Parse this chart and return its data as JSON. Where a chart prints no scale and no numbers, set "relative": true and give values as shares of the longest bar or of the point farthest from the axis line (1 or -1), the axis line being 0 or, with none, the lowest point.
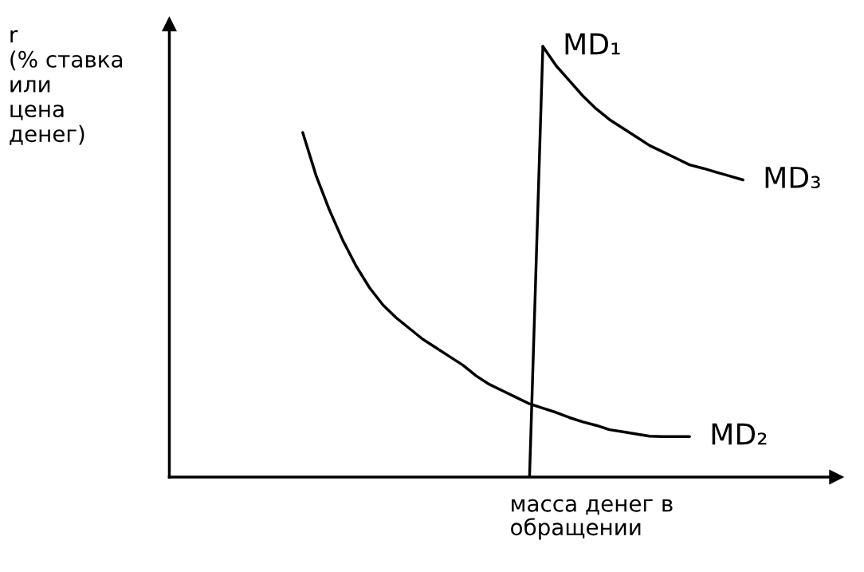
{
  "chart_data": {
    "type": "line",
    "relative": true,
    "color": "#000000",
    "ylabel": "r\n(% ставка\nили\nцена\nденег)",
    "xlabel": "масса денег в\nобращении",
    "categories": [
      null,
      null,
      null,
      null,
      null,
      null,
      null,
      null,
      null,
      null,
      null,
      null,
      null,
      null,
      null,
      null,
      null,
      null,
      null,
      null,
      null,
      null,
      null,
      null,
      null,
      null,
      null,
      null,
      null,
      null,
      null,
      null,
      null,
      null,
      null,
      null,
      null,
      null,
      null,
      null,
      null,
      null,
      null,
      null,
      null,
      null,
      null,
      null,
      null,
      null
    ],
    "series": [
      {
        "name": "MD₁",
        "values": [
          null,
          null,
          null,
          null,
          null,
          null,
          null,
          null,
          null,
          null,
          null,
          null,
          null,
          null,
          null,
          null,
          null,
          null,
          null,
          null,
          null,
          null,
          null,
          null,
          null,
          null,
          null,
          0,
          1,
          null,
          null,
          null,
          null,
          null,
          null,
          null,
          null,
          null,
          null,
          null,
          null,
          null,
          null,
          null,
          null,
          null,
          null,
          null,
          null,
          null
        ]
      },
      {
        "name": "MD₂",
        "values": [
          null,
          null,
          null,
          null,
          null,
          null,
          null,
          null,
          null,
          null,
          0.8,
          0.7,
          0.62,
          0.55,
          0.49,
          0.44,
          0.4,
          0.37,
          0.345,
          0.32,
          0.3,
          0.28,
          0.26,
          0.235,
          0.215,
          0.2,
          0.185,
          0.17,
          0.16,
          0.15,
          0.138,
          0.128,
          0.12,
          0.11,
          0.105,
          0.1,
          0.095,
          0.094,
          0.094,
          0.094,
          null,
          null,
          null,
          null,
          null,
          null,
          null,
          null,
          null,
          null
        ]
      },
      {
        "name": "MD₃",
        "values": [
          null,
          null,
          null,
          null,
          null,
          null,
          null,
          null,
          null,
          null,
          null,
          null,
          null,
          null,
          null,
          null,
          null,
          null,
          null,
          null,
          null,
          null,
          null,
          null,
          null,
          null,
          null,
          null,
          1,
          0.955,
          0.92,
          0.885,
          0.855,
          0.83,
          0.81,
          0.79,
          0.77,
          0.755,
          0.74,
          0.725,
          0.717,
          0.708,
          0.699,
          0.69,
          null,
          null,
          null,
          null,
          null,
          null
        ]
      }
    ]
  }
}
